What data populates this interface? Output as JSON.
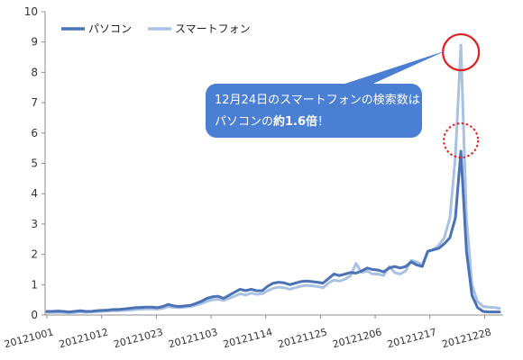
{
  "chart_data": {
    "type": "line",
    "ylim": [
      0,
      10
    ],
    "yticks": [
      "0",
      "1",
      "2",
      "3",
      "4",
      "5",
      "6",
      "7",
      "8",
      "9",
      "10"
    ],
    "xticks": [
      "20121001",
      "20121012",
      "20121023",
      "20121103",
      "20121114",
      "20121125",
      "20121206",
      "20121217",
      "20121228"
    ],
    "x_start": "20121001",
    "x_end": "20121231",
    "legend_position": "top-left",
    "grid": false,
    "series": [
      {
        "name": "パソコン",
        "color": "#4a72b4",
        "values": [
          0.12,
          0.12,
          0.13,
          0.12,
          0.1,
          0.12,
          0.14,
          0.12,
          0.12,
          0.14,
          0.15,
          0.16,
          0.18,
          0.18,
          0.2,
          0.22,
          0.24,
          0.25,
          0.26,
          0.26,
          0.24,
          0.28,
          0.35,
          0.3,
          0.28,
          0.3,
          0.32,
          0.38,
          0.45,
          0.55,
          0.6,
          0.62,
          0.55,
          0.65,
          0.75,
          0.85,
          0.8,
          0.85,
          0.8,
          0.8,
          0.95,
          1.05,
          1.08,
          1.06,
          1.0,
          1.05,
          1.1,
          1.12,
          1.1,
          1.08,
          1.05,
          1.2,
          1.35,
          1.3,
          1.35,
          1.4,
          1.38,
          1.45,
          1.55,
          1.5,
          1.48,
          1.42,
          1.55,
          1.6,
          1.55,
          1.6,
          1.75,
          1.65,
          1.6,
          2.1,
          2.15,
          2.2,
          2.35,
          2.55,
          3.2,
          5.4,
          2.1,
          0.65,
          0.25,
          0.12,
          0.1,
          0.1,
          0.1
        ],
        "annotation_peak": 5.4
      },
      {
        "name": "スマートフォン",
        "color": "#a9c1e2",
        "values": [
          0.08,
          0.08,
          0.09,
          0.08,
          0.07,
          0.08,
          0.1,
          0.09,
          0.1,
          0.11,
          0.12,
          0.13,
          0.14,
          0.14,
          0.15,
          0.16,
          0.18,
          0.19,
          0.2,
          0.2,
          0.19,
          0.22,
          0.28,
          0.25,
          0.24,
          0.26,
          0.28,
          0.32,
          0.38,
          0.45,
          0.5,
          0.52,
          0.48,
          0.55,
          0.62,
          0.7,
          0.66,
          0.72,
          0.68,
          0.7,
          0.8,
          0.88,
          0.92,
          0.9,
          0.85,
          0.9,
          0.95,
          0.98,
          0.96,
          0.94,
          0.9,
          1.05,
          1.15,
          1.12,
          1.18,
          1.3,
          1.7,
          1.4,
          1.45,
          1.35,
          1.35,
          1.3,
          1.6,
          1.4,
          1.35,
          1.45,
          1.8,
          1.75,
          1.65,
          2.1,
          2.15,
          2.3,
          2.55,
          3.2,
          5.2,
          8.9,
          3.2,
          1.0,
          0.45,
          0.28,
          0.26,
          0.25,
          0.22
        ],
        "annotation_peak": 8.9
      }
    ],
    "annotation": {
      "line1": "12月24日のスマートフォンの検索数は",
      "line2_prefix": "パソコンの",
      "line2_bold": "約1.6倍",
      "line2_suffix": "！",
      "bubble_color": "#4a7fd4",
      "circle_color": "#e02020"
    }
  }
}
